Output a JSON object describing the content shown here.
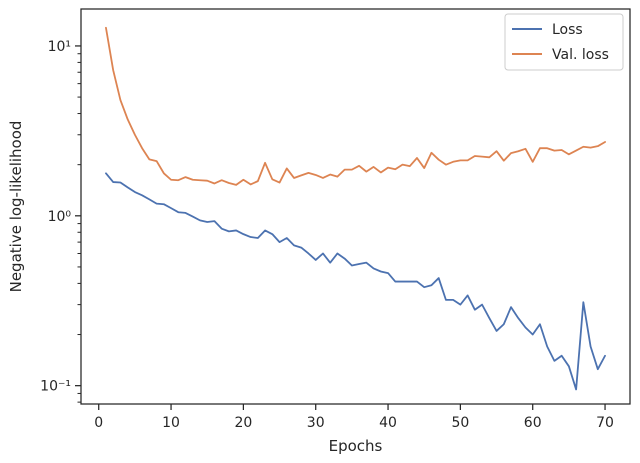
{
  "chart_data": {
    "type": "line",
    "title": "",
    "xlabel": "Epochs",
    "ylabel": "Negative log-likelihood",
    "xlim": [
      -2.45,
      73.45
    ],
    "ylim": [
      0.078,
      16.5
    ],
    "yscale": "log",
    "x_ticks": [
      0,
      10,
      20,
      30,
      40,
      50,
      60,
      70
    ],
    "x_tick_labels": [
      "0",
      "10",
      "20",
      "30",
      "40",
      "50",
      "60",
      "70"
    ],
    "y_ticks": [
      0.1,
      1,
      10
    ],
    "y_tick_labels": [
      "10⁻¹",
      "10⁰",
      "10¹"
    ],
    "grid": false,
    "legend_position": "top-right",
    "x": [
      1,
      2,
      3,
      4,
      5,
      6,
      7,
      8,
      9,
      10,
      11,
      12,
      13,
      14,
      15,
      16,
      17,
      18,
      19,
      20,
      21,
      22,
      23,
      24,
      25,
      26,
      27,
      28,
      29,
      30,
      31,
      32,
      33,
      34,
      35,
      36,
      37,
      38,
      39,
      40,
      41,
      42,
      43,
      44,
      45,
      46,
      47,
      48,
      49,
      50,
      51,
      52,
      53,
      54,
      55,
      56,
      57,
      58,
      59,
      60,
      61,
      62,
      63,
      64,
      65,
      66,
      67,
      68,
      69,
      70
    ],
    "series": [
      {
        "name": "Loss",
        "color": "#4c72b0",
        "values": [
          1.78,
          1.58,
          1.57,
          1.47,
          1.38,
          1.32,
          1.25,
          1.18,
          1.17,
          1.11,
          1.05,
          1.04,
          0.99,
          0.94,
          0.92,
          0.93,
          0.84,
          0.81,
          0.82,
          0.78,
          0.75,
          0.74,
          0.82,
          0.78,
          0.7,
          0.74,
          0.67,
          0.65,
          0.6,
          0.55,
          0.6,
          0.53,
          0.6,
          0.56,
          0.51,
          0.52,
          0.53,
          0.49,
          0.47,
          0.46,
          0.41,
          0.41,
          0.41,
          0.41,
          0.38,
          0.39,
          0.43,
          0.32,
          0.32,
          0.3,
          0.34,
          0.28,
          0.3,
          0.25,
          0.21,
          0.23,
          0.29,
          0.25,
          0.22,
          0.2,
          0.23,
          0.17,
          0.14,
          0.15,
          0.13,
          0.095,
          0.31,
          0.17,
          0.125,
          0.15
        ]
      },
      {
        "name": "Val. loss",
        "color": "#dd8452",
        "values": [
          12.8,
          7.2,
          4.8,
          3.7,
          3.0,
          2.5,
          2.15,
          2.1,
          1.78,
          1.63,
          1.62,
          1.69,
          1.63,
          1.62,
          1.61,
          1.55,
          1.62,
          1.56,
          1.52,
          1.63,
          1.53,
          1.6,
          2.05,
          1.64,
          1.57,
          1.9,
          1.67,
          1.73,
          1.79,
          1.74,
          1.67,
          1.75,
          1.7,
          1.87,
          1.87,
          1.97,
          1.82,
          1.94,
          1.8,
          1.92,
          1.88,
          2.0,
          1.96,
          2.19,
          1.91,
          2.35,
          2.14,
          2.0,
          2.08,
          2.12,
          2.12,
          2.25,
          2.23,
          2.21,
          2.4,
          2.11,
          2.34,
          2.4,
          2.48,
          2.08,
          2.5,
          2.5,
          2.42,
          2.44,
          2.3,
          2.42,
          2.55,
          2.52,
          2.57,
          2.72
        ]
      }
    ]
  }
}
